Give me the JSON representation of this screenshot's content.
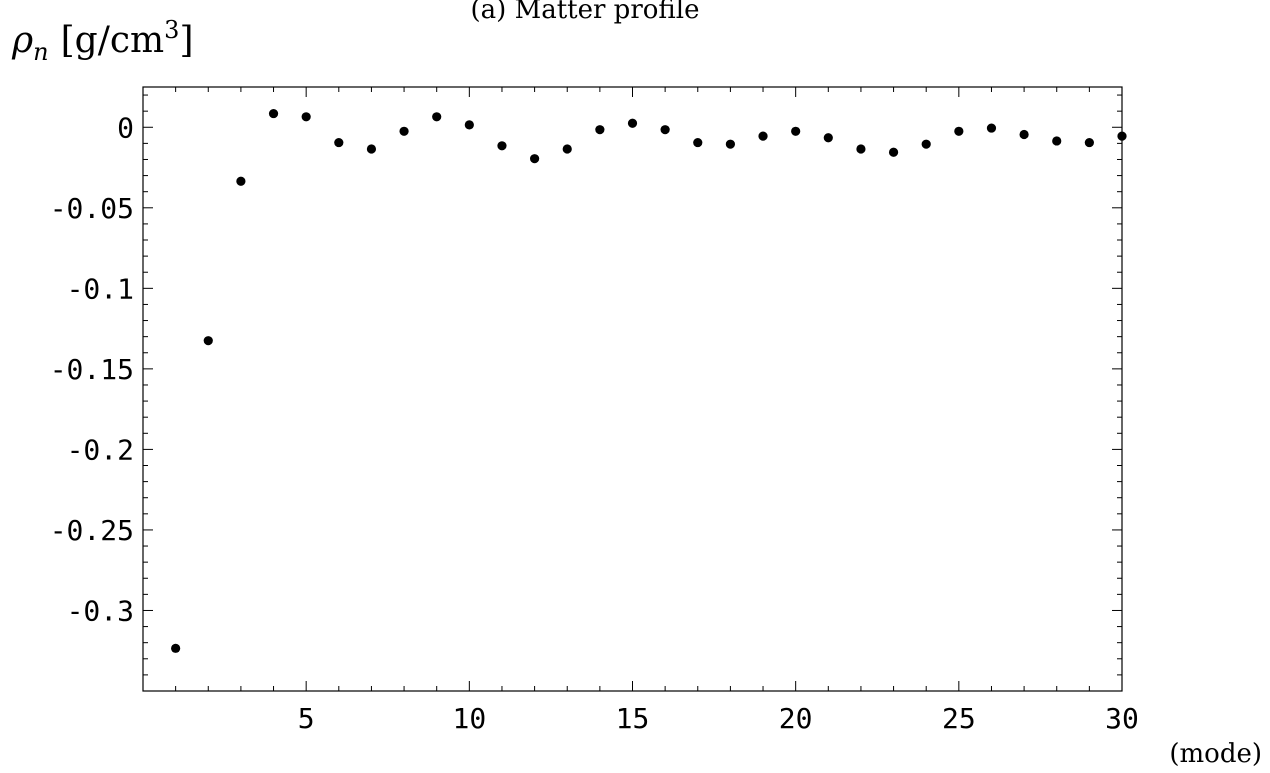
{
  "chart_data": {
    "type": "scatter",
    "title": "(a) Matter profile",
    "ylabel_symbol": "ρ",
    "ylabel_subscript": "n",
    "ylabel_units_prefix": "[g/cm",
    "ylabel_units_exponent": "3",
    "ylabel_units_suffix": "]",
    "xlabel": "(mode)",
    "xlim": [
      0,
      30
    ],
    "ylim": [
      -0.35,
      0.025
    ],
    "xticks": [
      {
        "value": 5,
        "label": "5"
      },
      {
        "value": 10,
        "label": "10"
      },
      {
        "value": 15,
        "label": "15"
      },
      {
        "value": 20,
        "label": "20"
      },
      {
        "value": 25,
        "label": "25"
      },
      {
        "value": 30,
        "label": "30"
      }
    ],
    "yticks": [
      {
        "value": 0,
        "label": "0"
      },
      {
        "value": -0.05,
        "label": "-0.05"
      },
      {
        "value": -0.1,
        "label": "-0.1"
      },
      {
        "value": -0.15,
        "label": "-0.15"
      },
      {
        "value": -0.2,
        "label": "-0.2"
      },
      {
        "value": -0.25,
        "label": "-0.25"
      },
      {
        "value": -0.3,
        "label": "-0.3"
      }
    ],
    "x": [
      1,
      2,
      3,
      4,
      5,
      6,
      7,
      8,
      9,
      10,
      11,
      12,
      13,
      14,
      15,
      16,
      17,
      18,
      19,
      20,
      21,
      22,
      23,
      24,
      25,
      26,
      27,
      28,
      29,
      30
    ],
    "y": [
      -0.3235,
      -0.1325,
      -0.0335,
      0.0085,
      0.0065,
      -0.0095,
      -0.0135,
      -0.0025,
      0.0065,
      0.0015,
      -0.0115,
      -0.0195,
      -0.0135,
      -0.0015,
      0.0025,
      -0.0015,
      -0.0095,
      -0.0105,
      -0.0055,
      -0.0025,
      -0.0065,
      -0.0135,
      -0.0155,
      -0.0105,
      -0.0025,
      -0.0005,
      -0.0045,
      -0.0085,
      -0.0095,
      -0.0055
    ],
    "grid": false,
    "marker_color": "#000000"
  }
}
